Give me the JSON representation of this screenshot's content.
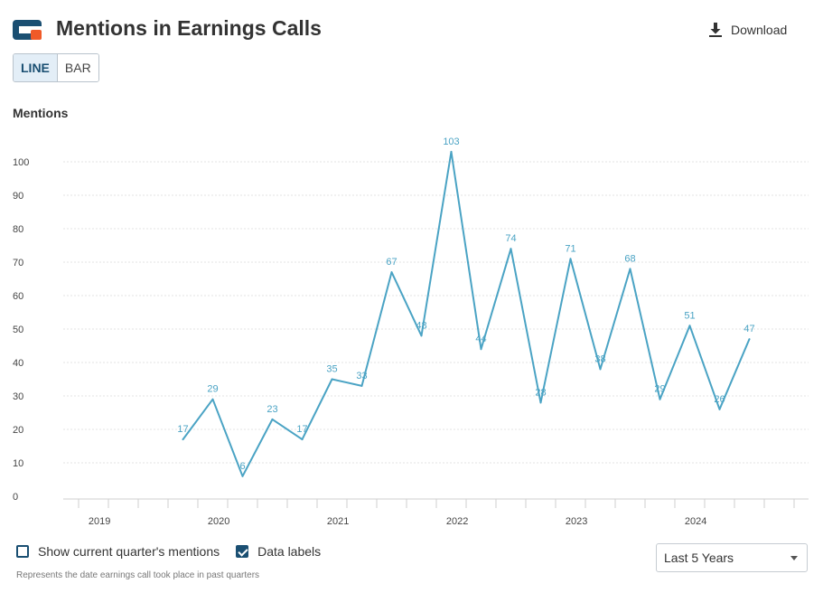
{
  "header": {
    "title": "Mentions in Earnings Calls",
    "download_label": "Download"
  },
  "toggle": {
    "line_label": "LINE",
    "bar_label": "BAR",
    "selected": "LINE"
  },
  "options": {
    "show_current_label": "Show current quarter's mentions",
    "show_current_checked": false,
    "data_labels_label": "Data labels",
    "data_labels_checked": true
  },
  "range_select": {
    "value": "Last 5 Years"
  },
  "footnote": "Represents the date earnings call took place in past quarters",
  "colors": {
    "line": "#4aa3c4",
    "accent": "#1a4f72",
    "logo_blue": "#1a4f72",
    "logo_orange": "#f05a28"
  },
  "chart_data": {
    "type": "line",
    "ylabel": "Mentions",
    "ylim": [
      0,
      100
    ],
    "yticks": [
      0,
      10,
      20,
      30,
      40,
      50,
      60,
      70,
      80,
      90,
      100
    ],
    "year_labels": [
      "2019",
      "2020",
      "2021",
      "2022",
      "2023",
      "2024"
    ],
    "quarter_slots": 25,
    "first_point_slot": 4,
    "grid": true,
    "series": [
      {
        "values": [
          17,
          29,
          6,
          23,
          17,
          35,
          33,
          67,
          48,
          103,
          44,
          74,
          28,
          71,
          38,
          68,
          29,
          51,
          26,
          47
        ]
      }
    ]
  }
}
